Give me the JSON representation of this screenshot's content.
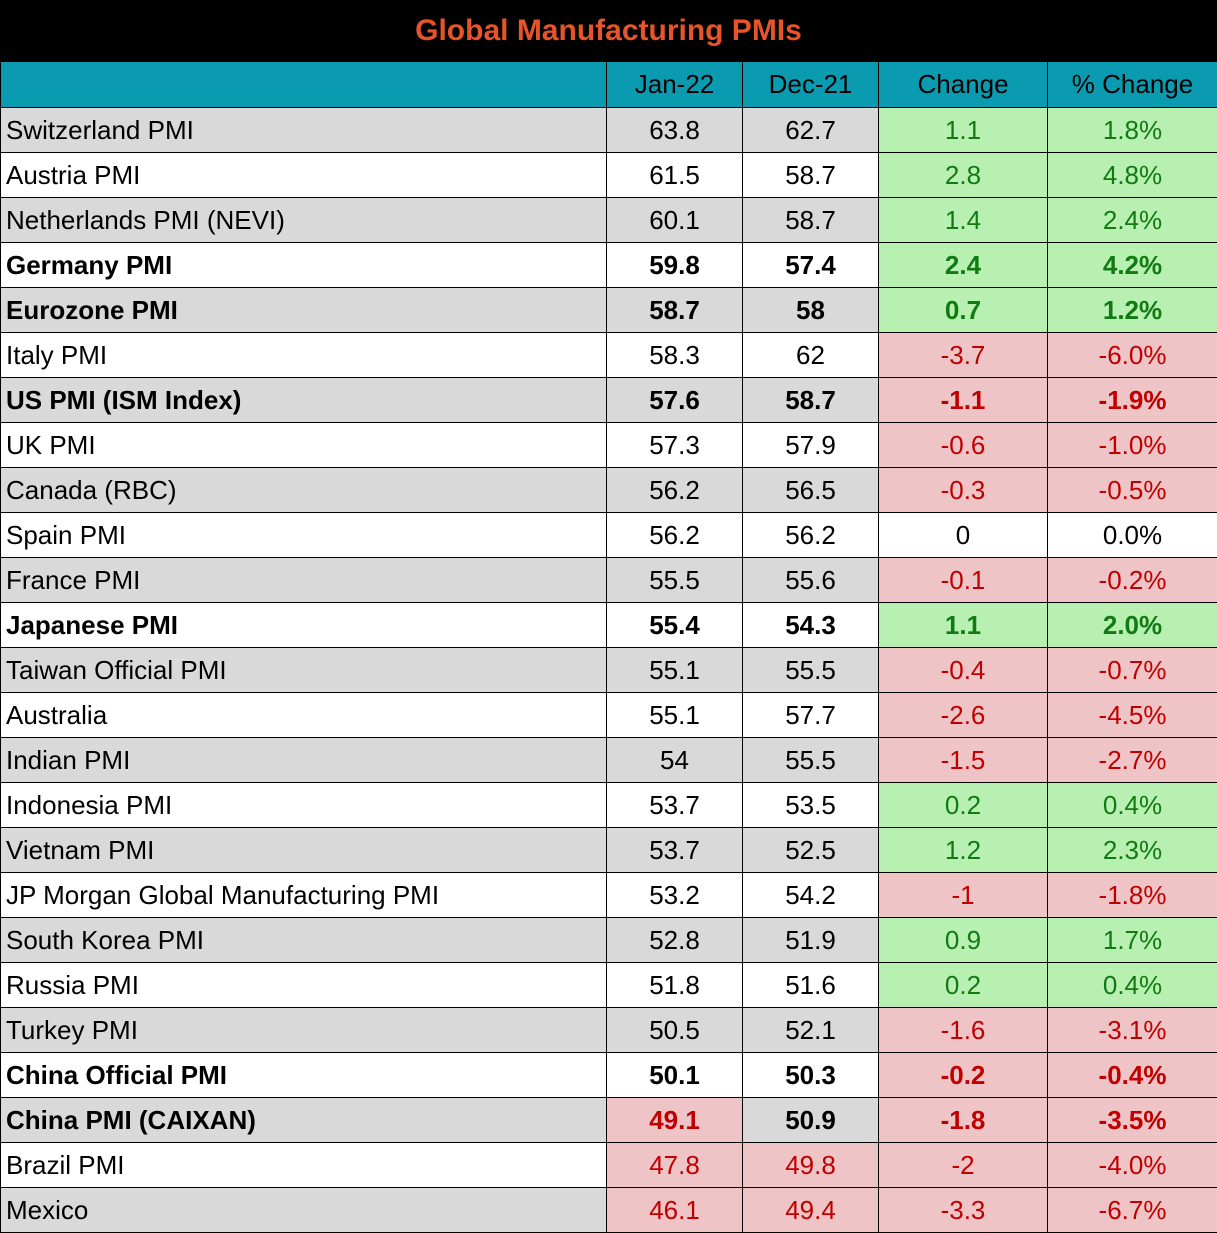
{
  "title": "Global Manufacturing PMIs",
  "colors": {
    "title_bg": "#000000",
    "title_text": "#e8542a",
    "header_bg": "#0b9bb0",
    "row_alt": "#d9d9d9",
    "positive_bg": "#b7f0b1",
    "positive_text": "#127a12",
    "negative_bg": "#eec4c6",
    "negative_text": "#c00000"
  },
  "chart_data": {
    "type": "table",
    "title": "Global Manufacturing PMIs",
    "columns": [
      "",
      "Jan-22",
      "Dec-21",
      "Change",
      "% Change"
    ],
    "rows": [
      {
        "name": "Switzerland PMI",
        "jan": "63.8",
        "dec": "62.7",
        "change": "1.1",
        "pct": "1.8%",
        "bold": false,
        "shade": true,
        "sign": "pos",
        "low": []
      },
      {
        "name": "Austria PMI",
        "jan": "61.5",
        "dec": "58.7",
        "change": "2.8",
        "pct": "4.8%",
        "bold": false,
        "shade": false,
        "sign": "pos",
        "low": []
      },
      {
        "name": "Netherlands PMI (NEVI)",
        "jan": "60.1",
        "dec": "58.7",
        "change": "1.4",
        "pct": "2.4%",
        "bold": false,
        "shade": true,
        "sign": "pos",
        "low": []
      },
      {
        "name": "Germany PMI",
        "jan": "59.8",
        "dec": "57.4",
        "change": "2.4",
        "pct": "4.2%",
        "bold": true,
        "shade": false,
        "sign": "pos",
        "low": []
      },
      {
        "name": "Eurozone PMI",
        "jan": "58.7",
        "dec": "58",
        "change": "0.7",
        "pct": "1.2%",
        "bold": true,
        "shade": true,
        "sign": "pos",
        "low": []
      },
      {
        "name": "Italy PMI",
        "jan": "58.3",
        "dec": "62",
        "change": "-3.7",
        "pct": "-6.0%",
        "bold": false,
        "shade": false,
        "sign": "neg",
        "low": []
      },
      {
        "name": "US PMI (ISM Index)",
        "jan": "57.6",
        "dec": "58.7",
        "change": "-1.1",
        "pct": "-1.9%",
        "bold": true,
        "shade": true,
        "sign": "neg",
        "low": []
      },
      {
        "name": "UK PMI",
        "jan": "57.3",
        "dec": "57.9",
        "change": "-0.6",
        "pct": "-1.0%",
        "bold": false,
        "shade": false,
        "sign": "neg",
        "low": []
      },
      {
        "name": "Canada (RBC)",
        "jan": "56.2",
        "dec": "56.5",
        "change": "-0.3",
        "pct": "-0.5%",
        "bold": false,
        "shade": true,
        "sign": "neg",
        "low": []
      },
      {
        "name": "Spain PMI",
        "jan": "56.2",
        "dec": "56.2",
        "change": "0",
        "pct": "0.0%",
        "bold": false,
        "shade": false,
        "sign": "zero",
        "low": []
      },
      {
        "name": "France PMI",
        "jan": "55.5",
        "dec": "55.6",
        "change": "-0.1",
        "pct": "-0.2%",
        "bold": false,
        "shade": true,
        "sign": "neg",
        "low": []
      },
      {
        "name": "Japanese PMI",
        "jan": "55.4",
        "dec": "54.3",
        "change": "1.1",
        "pct": "2.0%",
        "bold": true,
        "shade": false,
        "sign": "pos",
        "low": []
      },
      {
        "name": "Taiwan Official PMI",
        "jan": "55.1",
        "dec": "55.5",
        "change": "-0.4",
        "pct": "-0.7%",
        "bold": false,
        "shade": true,
        "sign": "neg",
        "low": []
      },
      {
        "name": "Australia",
        "jan": "55.1",
        "dec": "57.7",
        "change": "-2.6",
        "pct": "-4.5%",
        "bold": false,
        "shade": false,
        "sign": "neg",
        "low": []
      },
      {
        "name": "Indian PMI",
        "jan": "54",
        "dec": "55.5",
        "change": "-1.5",
        "pct": "-2.7%",
        "bold": false,
        "shade": true,
        "sign": "neg",
        "low": []
      },
      {
        "name": "Indonesia PMI",
        "jan": "53.7",
        "dec": "53.5",
        "change": "0.2",
        "pct": "0.4%",
        "bold": false,
        "shade": false,
        "sign": "pos",
        "low": []
      },
      {
        "name": "Vietnam PMI",
        "jan": "53.7",
        "dec": "52.5",
        "change": "1.2",
        "pct": "2.3%",
        "bold": false,
        "shade": true,
        "sign": "pos",
        "low": []
      },
      {
        "name": "JP Morgan Global Manufacturing PMI",
        "jan": "53.2",
        "dec": "54.2",
        "change": "-1",
        "pct": "-1.8%",
        "bold": false,
        "shade": false,
        "sign": "neg",
        "low": []
      },
      {
        "name": "South Korea PMI",
        "jan": "52.8",
        "dec": "51.9",
        "change": "0.9",
        "pct": "1.7%",
        "bold": false,
        "shade": true,
        "sign": "pos",
        "low": []
      },
      {
        "name": "Russia PMI",
        "jan": "51.8",
        "dec": "51.6",
        "change": "0.2",
        "pct": "0.4%",
        "bold": false,
        "shade": false,
        "sign": "pos",
        "low": []
      },
      {
        "name": "Turkey PMI",
        "jan": "50.5",
        "dec": "52.1",
        "change": "-1.6",
        "pct": "-3.1%",
        "bold": false,
        "shade": true,
        "sign": "neg",
        "low": []
      },
      {
        "name": "China Official PMI",
        "jan": "50.1",
        "dec": "50.3",
        "change": "-0.2",
        "pct": "-0.4%",
        "bold": true,
        "shade": false,
        "sign": "neg",
        "low": []
      },
      {
        "name": "China PMI (CAIXAN)",
        "jan": "49.1",
        "dec": "50.9",
        "change": "-1.8",
        "pct": "-3.5%",
        "bold": true,
        "shade": true,
        "sign": "neg",
        "low": [
          "jan"
        ]
      },
      {
        "name": "Brazil PMI",
        "jan": "47.8",
        "dec": "49.8",
        "change": "-2",
        "pct": "-4.0%",
        "bold": false,
        "shade": false,
        "sign": "neg",
        "low": [
          "jan",
          "dec"
        ]
      },
      {
        "name": "Mexico",
        "jan": "46.1",
        "dec": "49.4",
        "change": "-3.3",
        "pct": "-6.7%",
        "bold": false,
        "shade": true,
        "sign": "neg",
        "low": [
          "jan",
          "dec"
        ]
      }
    ]
  }
}
